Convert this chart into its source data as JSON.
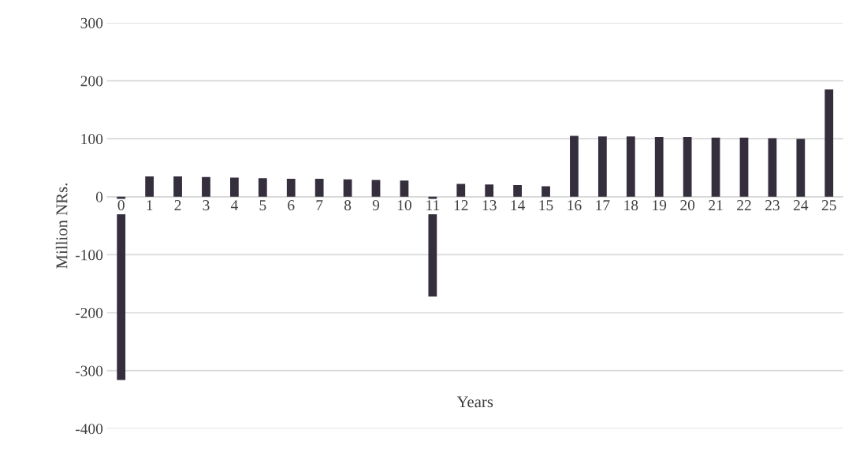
{
  "chart_data": {
    "type": "bar",
    "xlabel": "Years",
    "ylabel": "Million NRs.",
    "categories": [
      "0",
      "1",
      "2",
      "3",
      "4",
      "5",
      "6",
      "7",
      "8",
      "9",
      "10",
      "11",
      "12",
      "13",
      "14",
      "15",
      "16",
      "17",
      "18",
      "19",
      "20",
      "21",
      "22",
      "23",
      "24",
      "25"
    ],
    "values": [
      -316,
      35,
      35,
      34,
      33,
      32,
      31,
      31,
      30,
      29,
      28,
      -172,
      22,
      21,
      20,
      18,
      105,
      104,
      104,
      103,
      103,
      102,
      102,
      101,
      100,
      185
    ],
    "color": "#352f3d",
    "ylim": [
      -400,
      300
    ],
    "yticks": [
      -400,
      -300,
      -200,
      -100,
      0,
      100,
      200,
      300
    ],
    "grid": "y"
  }
}
